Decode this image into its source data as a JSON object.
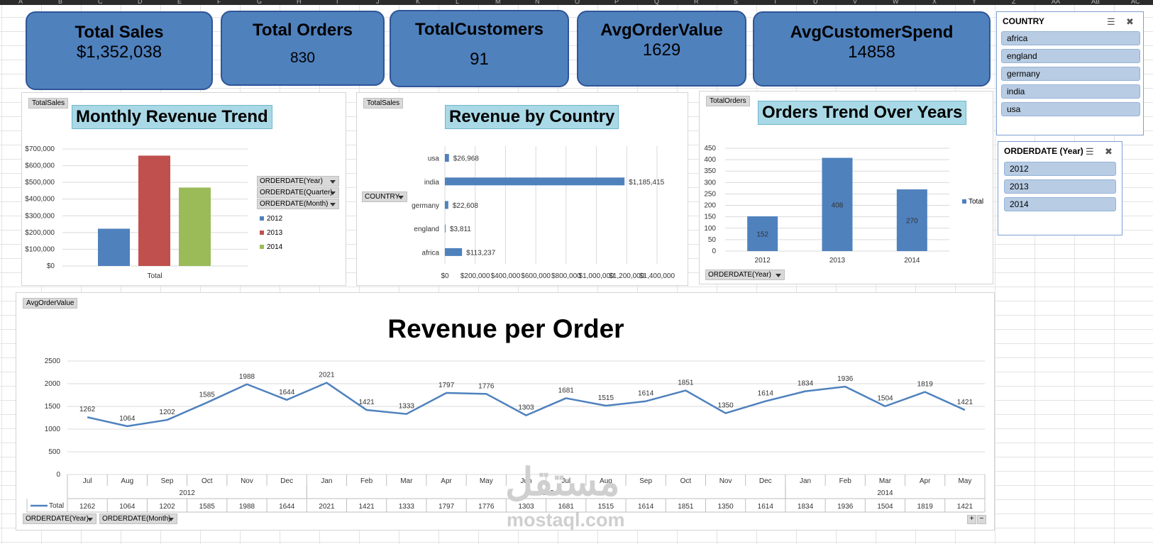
{
  "columns": [
    "A",
    "B",
    "C",
    "D",
    "E",
    "F",
    "G",
    "H",
    "I",
    "J",
    "K",
    "L",
    "M",
    "N",
    "O",
    "P",
    "Q",
    "R",
    "S",
    "T",
    "U",
    "V",
    "W",
    "X",
    "Y",
    "Z",
    "AA",
    "AB",
    "AC"
  ],
  "kpis": [
    {
      "title": "Total Sales",
      "value": "$1,352,038"
    },
    {
      "title": "Total Orders",
      "value": "830"
    },
    {
      "title": "TotalCustomers",
      "value": "91"
    },
    {
      "title": "AvgOrderValue",
      "value": "1629"
    },
    {
      "title": "AvgCustomerSpend",
      "value": "14858"
    }
  ],
  "monthly": {
    "field_button": "TotalSales",
    "title": "Monthly Revenue Trend",
    "filters": [
      "ORDERDATE(Year)",
      "ORDERDATE(Quarter)",
      "ORDERDATE(Month)"
    ],
    "legend": [
      "2012",
      "2013",
      "2014"
    ]
  },
  "country": {
    "field_button": "TotalSales",
    "title": "Revenue by Country",
    "filter": "COUNTRY"
  },
  "orders": {
    "field_button": "TotalOrders",
    "title": "Orders Trend Over Years",
    "filter": "ORDERDATE(Year)",
    "legend": "Total"
  },
  "revenue_per_order": {
    "field_button": "AvgOrderValue",
    "title": "Revenue per Order",
    "filters": [
      "ORDERDATE(Year)",
      "ORDERDATE(Month)"
    ],
    "legend": "Total"
  },
  "slicers": {
    "country": {
      "title": "COUNTRY",
      "items": [
        "africa",
        "england",
        "germany",
        "india",
        "usa"
      ]
    },
    "year": {
      "title": "ORDERDATE (Year)",
      "items": [
        "2012",
        "2013",
        "2014"
      ]
    }
  },
  "watermark": {
    "arabic": "مستقل",
    "latin": "mostaql.com"
  },
  "colors": {
    "blue": "#4f81bd",
    "red": "#c0504d",
    "green": "#9bbb59",
    "kpi_bg": "#4f81bd",
    "title_bg": "#a9d9e6"
  },
  "chart_data": [
    {
      "type": "bar",
      "title": "Monthly Revenue Trend",
      "categories": [
        "Total"
      ],
      "series": [
        {
          "name": "2012",
          "values": [
            223000
          ]
        },
        {
          "name": "2013",
          "values": [
            660000
          ]
        },
        {
          "name": "2014",
          "values": [
            469000
          ]
        }
      ],
      "yticks": [
        "$0",
        "$100,000",
        "$200,000",
        "$300,000",
        "$400,000",
        "$500,000",
        "$600,000",
        "$700,000"
      ],
      "ylim": [
        0,
        700000
      ],
      "legend_position": "right",
      "grid": true
    },
    {
      "type": "bar",
      "orientation": "horizontal",
      "title": "Revenue by Country",
      "categories": [
        "usa",
        "india",
        "germany",
        "england",
        "africa"
      ],
      "values": [
        26968,
        1185415,
        22608,
        3811,
        113237
      ],
      "data_labels": [
        "$26,968",
        "$1,185,415",
        "$22,608",
        "$3,811",
        "$113,237"
      ],
      "xticks": [
        "$0",
        "$200,000",
        "$400,000",
        "$600,000",
        "$800,000",
        "$1,000,000",
        "$1,200,000",
        "$1,400,000"
      ],
      "xlim": [
        0,
        1400000
      ],
      "grid": true
    },
    {
      "type": "bar",
      "title": "Orders Trend Over Years",
      "categories": [
        "2012",
        "2013",
        "2014"
      ],
      "values": [
        152,
        408,
        270
      ],
      "data_labels": [
        "152",
        "408",
        "270"
      ],
      "series_name": "Total",
      "yticks": [
        "0",
        "50",
        "100",
        "150",
        "200",
        "250",
        "300",
        "350",
        "400",
        "450"
      ],
      "ylim": [
        0,
        450
      ],
      "legend_position": "right",
      "grid": true
    },
    {
      "type": "line",
      "title": "Revenue per Order",
      "series_name": "Total",
      "months": [
        "Jul",
        "Aug",
        "Sep",
        "Oct",
        "Nov",
        "Dec",
        "Jan",
        "Feb",
        "Mar",
        "Apr",
        "May",
        "Jun",
        "Jul",
        "Aug",
        "Sep",
        "Oct",
        "Nov",
        "Dec",
        "Jan",
        "Feb",
        "Mar",
        "Apr",
        "May"
      ],
      "years": [
        {
          "label": "2012",
          "span": [
            0,
            5
          ]
        },
        {
          "label": "2013",
          "span": [
            6,
            17
          ]
        },
        {
          "label": "2014",
          "span": [
            18,
            22
          ]
        }
      ],
      "values": [
        1262,
        1064,
        1202,
        1585,
        1988,
        1644,
        2021,
        1421,
        1333,
        1797,
        1776,
        1303,
        1681,
        1515,
        1614,
        1851,
        1350,
        1614,
        1834,
        1936,
        1504,
        1819,
        1421
      ],
      "yticks": [
        "0",
        "500",
        "1000",
        "1500",
        "2000",
        "2500"
      ],
      "ylim": [
        0,
        2500
      ],
      "grid": true,
      "data_table": true
    }
  ]
}
